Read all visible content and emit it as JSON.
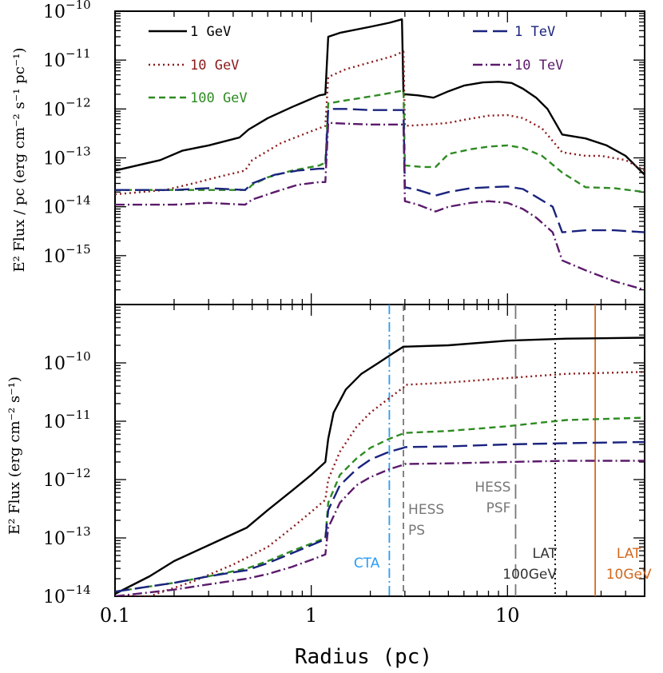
{
  "chart_data": [
    {
      "type": "line",
      "panel": "top",
      "ylabel": "E² Flux / pc (erg cm⁻² s⁻¹ pc⁻¹)",
      "xlabel": "",
      "xscale": "log",
      "yscale": "log",
      "xlim": [
        0.1,
        50
      ],
      "ylim": [
        1e-16,
        1e-10
      ],
      "y_ticks": [
        {
          "exp": "−10",
          "value": 1e-10
        },
        {
          "exp": "−11",
          "value": 1e-11
        },
        {
          "exp": "−12",
          "value": 1e-12
        },
        {
          "exp": "−13",
          "value": 1e-13
        },
        {
          "exp": "−14",
          "value": 1e-14
        },
        {
          "exp": "−15",
          "value": 1e-15
        }
      ],
      "series": [
        {
          "name": "1 GeV",
          "color": "#000000",
          "dash": "solid",
          "x": [
            0.1,
            0.17,
            0.22,
            0.3,
            0.43,
            0.48,
            0.6,
            0.8,
            1.1,
            1.18,
            1.22,
            1.4,
            2.0,
            2.5,
            2.9,
            2.95,
            3.0,
            3.5,
            4.2,
            5.0,
            6.0,
            7.5,
            9.0,
            10.5,
            12.0,
            14.0,
            16.0,
            19.0,
            25.0,
            32.0,
            40.0,
            50.0
          ],
          "y": [
            5.5e-14,
            9e-14,
            1.4e-13,
            1.8e-13,
            2.6e-13,
            3.8e-13,
            6.5e-13,
            1.1e-12,
            1.9e-12,
            2e-12,
            3e-11,
            3.6e-11,
            4.8e-11,
            5.8e-11,
            6.8e-11,
            2e-12,
            2e-12,
            1.9e-12,
            1.7e-12,
            2.3e-12,
            3e-12,
            3.5e-12,
            3.6e-12,
            3.4e-12,
            2.6e-12,
            1.7e-12,
            1e-12,
            3e-13,
            2.5e-13,
            1.8e-13,
            1.1e-13,
            4.5e-14
          ]
        },
        {
          "name": "10 GeV",
          "color": "#8b1a1a",
          "dash": "dotted",
          "x": [
            0.1,
            0.18,
            0.25,
            0.33,
            0.46,
            0.5,
            0.7,
            1.0,
            1.18,
            1.22,
            1.5,
            2.0,
            2.6,
            2.95,
            3.0,
            4.0,
            5.0,
            6.0,
            8.0,
            10.0,
            12.0,
            15.0,
            19.0,
            25.0,
            30.0,
            40.0,
            50.0
          ],
          "y": [
            1.8e-14,
            2.2e-14,
            3e-14,
            4e-14,
            5.5e-14,
            9e-14,
            2e-13,
            3.5e-13,
            4.5e-13,
            4.5e-12,
            6.5e-12,
            9e-12,
            1.2e-11,
            1.5e-11,
            4.5e-13,
            4.8e-13,
            5.2e-13,
            6e-13,
            7.3e-13,
            7.5e-13,
            6.5e-13,
            4e-13,
            1.3e-13,
            1.1e-13,
            1.1e-13,
            9e-14,
            5.5e-14
          ]
        },
        {
          "name": "100 GeV",
          "color": "#2e8b22",
          "dash": "dashed",
          "x": [
            0.1,
            0.2,
            0.35,
            0.47,
            0.5,
            0.6,
            0.8,
            1.1,
            1.18,
            1.22,
            1.5,
            2.0,
            2.5,
            2.95,
            3.0,
            3.7,
            4.3,
            5.0,
            6.5,
            8.0,
            10.0,
            12.0,
            15.0,
            19.0,
            25.0,
            35.0,
            50.0
          ],
          "y": [
            2.2e-14,
            2.2e-14,
            2.2e-14,
            2.2e-14,
            2.8e-14,
            4e-14,
            5.5e-14,
            7e-14,
            8e-14,
            1.3e-12,
            1.5e-12,
            1.8e-12,
            2.1e-12,
            2.4e-12,
            7e-14,
            6.5e-14,
            6.5e-14,
            1.2e-13,
            1.5e-13,
            1.7e-13,
            1.8e-13,
            1.6e-13,
            1.1e-13,
            5e-14,
            2.5e-14,
            2.4e-14,
            2e-14
          ]
        },
        {
          "name": "1 TeV",
          "color": "#1a237e",
          "dash": "longdash",
          "x": [
            0.1,
            0.2,
            0.3,
            0.46,
            0.5,
            0.65,
            0.85,
            1.1,
            1.18,
            1.22,
            1.5,
            2.0,
            2.95,
            3.0,
            3.5,
            4.3,
            5.0,
            6.5,
            8.0,
            10.0,
            12.0,
            14.0,
            17.0,
            19.0,
            25.0,
            35.0,
            50.0
          ],
          "y": [
            2.2e-14,
            2.2e-14,
            2.4e-14,
            2.2e-14,
            3e-14,
            4.5e-14,
            5.5e-14,
            6e-14,
            6e-14,
            1e-12,
            1e-12,
            9.5e-13,
            9.5e-13,
            2.5e-14,
            2.2e-14,
            1.7e-14,
            2e-14,
            2.4e-14,
            2.5e-14,
            2.6e-14,
            2.3e-14,
            1.6e-14,
            1e-14,
            3e-15,
            3.3e-15,
            3.3e-15,
            3e-15
          ]
        },
        {
          "name": "10 TeV",
          "color": "#5b1a6b",
          "dash": "dashdot",
          "x": [
            0.1,
            0.2,
            0.3,
            0.46,
            0.5,
            0.65,
            0.85,
            1.1,
            1.18,
            1.22,
            1.5,
            2.0,
            2.95,
            3.0,
            3.5,
            4.3,
            5.0,
            6.5,
            8.0,
            10.0,
            12.0,
            14.0,
            17.0,
            19.0,
            25.0,
            35.0,
            50.0
          ],
          "y": [
            1.1e-14,
            1.1e-14,
            1.2e-14,
            1.1e-14,
            1.4e-14,
            2e-14,
            2.8e-14,
            3.2e-14,
            3.2e-14,
            5.2e-13,
            5e-13,
            4.8e-13,
            4.8e-13,
            1.3e-14,
            1.1e-14,
            8e-15,
            1e-14,
            1.2e-14,
            1.3e-14,
            1.2e-14,
            9e-15,
            6e-15,
            3e-15,
            8e-16,
            5e-16,
            3e-16,
            2e-16
          ]
        }
      ],
      "legend": [
        "1 GeV",
        "10 GeV",
        "100 GeV",
        "1 TeV",
        "10 TeV"
      ]
    },
    {
      "type": "line",
      "panel": "bottom",
      "ylabel": "E² Flux (erg cm⁻² s⁻¹)",
      "xlabel": "Radius (pc)",
      "xscale": "log",
      "yscale": "log",
      "xlim": [
        0.1,
        50
      ],
      "ylim": [
        1e-14,
        1e-09
      ],
      "x_ticks": [
        {
          "label": "0.1",
          "value": 0.1
        },
        {
          "label": "1",
          "value": 1
        },
        {
          "label": "10",
          "value": 10
        }
      ],
      "y_ticks": [
        {
          "exp": "−10",
          "value": 1e-10
        },
        {
          "exp": "−11",
          "value": 1e-11
        },
        {
          "exp": "−12",
          "value": 1e-12
        },
        {
          "exp": "−13",
          "value": 1e-13
        },
        {
          "exp": "−14",
          "value": 1e-14
        }
      ],
      "series": [
        {
          "name": "1 GeV",
          "color": "#000000",
          "dash": "solid",
          "x": [
            0.1,
            0.15,
            0.2,
            0.3,
            0.47,
            0.6,
            0.8,
            1.0,
            1.18,
            1.22,
            1.3,
            1.5,
            1.8,
            2.2,
            2.6,
            2.95,
            3.0,
            5.0,
            10.0,
            20.0,
            50.0
          ],
          "y": [
            1.1e-14,
            2.2e-14,
            4e-14,
            7.5e-14,
            1.5e-13,
            3e-13,
            6.5e-13,
            1.2e-12,
            2e-12,
            5e-12,
            1.4e-11,
            3.5e-11,
            6.5e-11,
            1e-10,
            1.45e-10,
            1.9e-10,
            1.9e-10,
            2e-10,
            2.4e-10,
            2.6e-10,
            2.7e-10
          ]
        },
        {
          "name": "10 GeV",
          "color": "#8b1a1a",
          "dash": "dotted",
          "x": [
            0.1,
            0.15,
            0.25,
            0.4,
            0.6,
            0.8,
            1.0,
            1.18,
            1.22,
            1.4,
            1.7,
            2.0,
            2.5,
            2.95,
            3.0,
            5.0,
            10.0,
            20.0,
            50.0
          ],
          "y": [
            1e-14,
            1e-14,
            1.8e-14,
            3.5e-14,
            7e-14,
            1.5e-13,
            2.8e-13,
            4.5e-13,
            1e-12,
            3e-12,
            8e-12,
            1.4e-11,
            2.5e-11,
            3.8e-11,
            4.2e-11,
            4.6e-11,
            5.5e-11,
            6.5e-11,
            7e-11
          ]
        },
        {
          "name": "100 GeV",
          "color": "#2e8b22",
          "dash": "dashed",
          "x": [
            0.1,
            0.2,
            0.3,
            0.47,
            0.6,
            0.8,
            1.0,
            1.18,
            1.22,
            1.4,
            1.7,
            2.0,
            2.5,
            2.95,
            3.0,
            5.0,
            10.0,
            15.0,
            20.0,
            50.0
          ],
          "y": [
            1.2e-14,
            1.7e-14,
            2.2e-14,
            3e-14,
            4e-14,
            6e-14,
            8e-14,
            1e-13,
            4e-13,
            1.2e-12,
            2.3e-12,
            3.5e-12,
            5e-12,
            6.2e-12,
            6.3e-12,
            6.8e-12,
            8.2e-12,
            9.5e-12,
            1.05e-11,
            1.15e-11
          ]
        },
        {
          "name": "1 TeV",
          "color": "#1a237e",
          "dash": "longdash",
          "x": [
            0.1,
            0.2,
            0.3,
            0.47,
            0.6,
            0.8,
            1.0,
            1.18,
            1.22,
            1.4,
            1.7,
            2.0,
            2.5,
            2.95,
            3.0,
            5.0,
            10.0,
            20.0,
            50.0
          ],
          "y": [
            1.2e-14,
            1.7e-14,
            2.2e-14,
            2.8e-14,
            3.7e-14,
            5.5e-14,
            7.5e-14,
            9.5e-14,
            3e-13,
            8e-13,
            1.5e-12,
            2.2e-12,
            3e-12,
            3.5e-12,
            3.6e-12,
            3.7e-12,
            4e-12,
            4.2e-12,
            4.4e-12
          ]
        },
        {
          "name": "10 TeV",
          "color": "#5b1a6b",
          "dash": "dashdot",
          "x": [
            0.1,
            0.2,
            0.3,
            0.47,
            0.6,
            0.8,
            1.0,
            1.18,
            1.22,
            1.4,
            1.7,
            2.0,
            2.5,
            2.95,
            3.0,
            5.0,
            10.0,
            20.0,
            50.0
          ],
          "y": [
            1e-14,
            1.3e-14,
            1.6e-14,
            2e-14,
            2.4e-14,
            3.2e-14,
            4.2e-14,
            5.2e-14,
            1.5e-13,
            4e-13,
            8e-13,
            1.1e-12,
            1.5e-12,
            1.8e-12,
            1.85e-12,
            1.9e-12,
            2e-12,
            2.1e-12,
            2.1e-12
          ]
        }
      ],
      "vertical_lines": [
        {
          "x": 2.5,
          "color": "#2a9df4",
          "dash": "dashdot",
          "label": [
            "CTA"
          ]
        },
        {
          "x": 2.95,
          "color": "#777777",
          "dash": "dashed",
          "label": [
            "HESS",
            "PS"
          ]
        },
        {
          "x": 11.0,
          "color": "#777777",
          "dash": "longdash",
          "label": [
            "HESS",
            "PSF"
          ]
        },
        {
          "x": 17.5,
          "color": "#000000",
          "dash": "dotted",
          "label": [
            "LAT",
            "100GeV"
          ]
        },
        {
          "x": 28.0,
          "color": "#d2691e",
          "dash": "solid",
          "label": [
            "LAT",
            "10GeV"
          ]
        }
      ]
    }
  ]
}
